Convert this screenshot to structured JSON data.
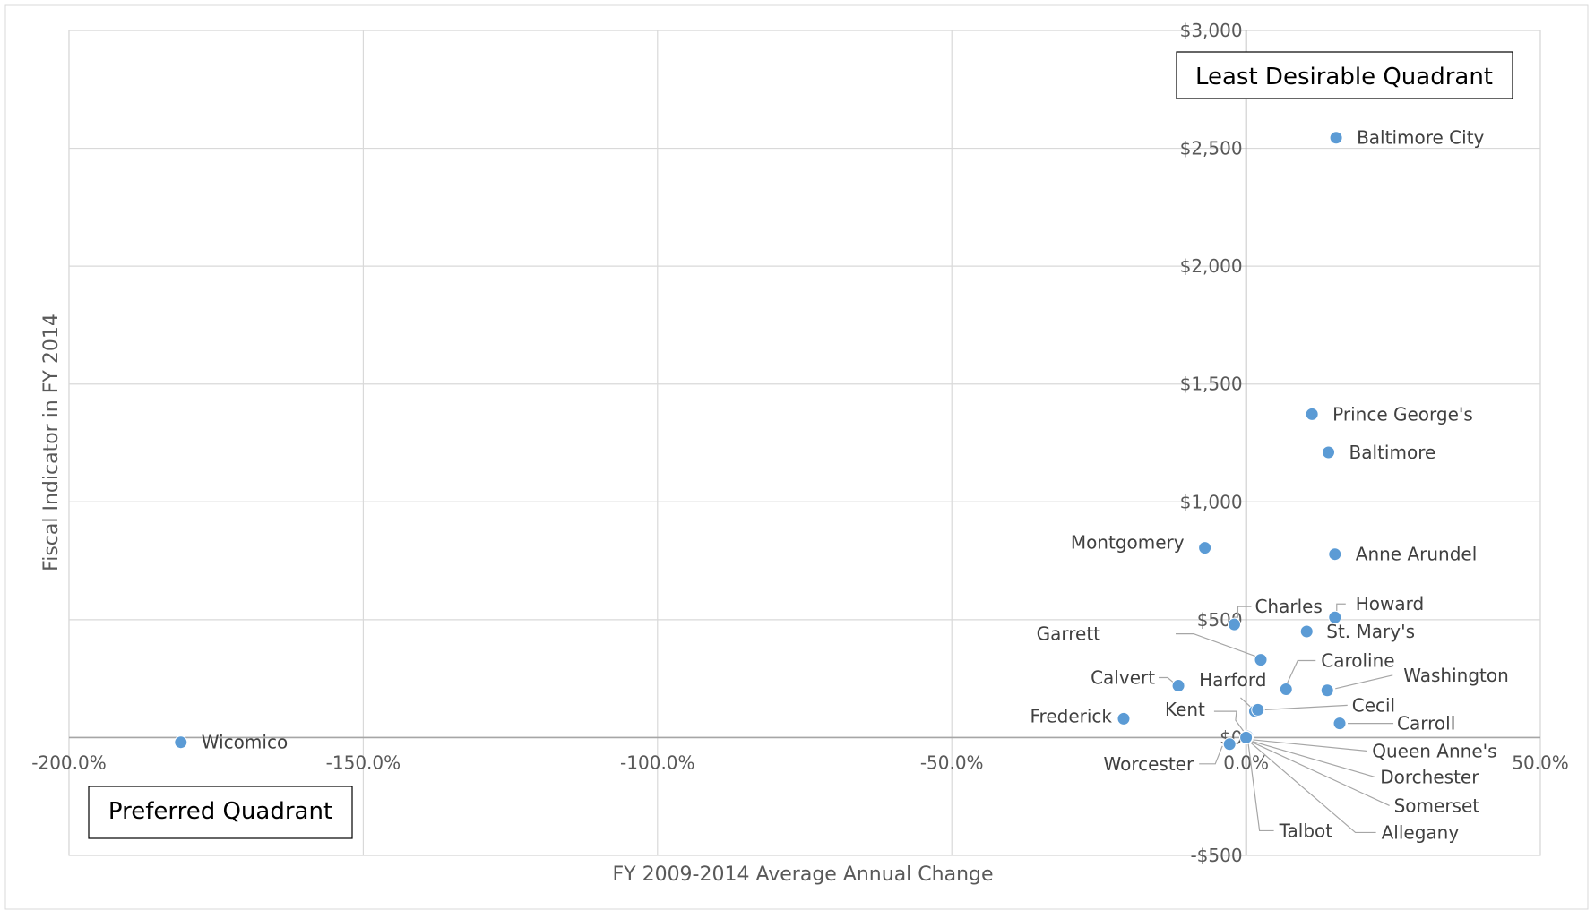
{
  "chart_data": {
    "type": "scatter",
    "xlabel": "FY 2009-2014 Average Annual Change",
    "ylabel": "Fiscal Indicator in FY 2014",
    "xlim": [
      -2.0,
      0.5
    ],
    "ylim": [
      -500,
      3000
    ],
    "x_ticks": [
      -2.0,
      -1.5,
      -1.0,
      -0.5,
      0.0,
      0.5
    ],
    "x_tick_labels": [
      "-200.0%",
      "-150.0%",
      "-100.0%",
      "-50.0%",
      "0.0%",
      "50.0%"
    ],
    "y_ticks": [
      -500,
      0,
      500,
      1000,
      1500,
      2000,
      2500,
      3000
    ],
    "y_tick_labels": [
      "-$500",
      "$0",
      "$500",
      "$1,000",
      "$1,500",
      "$2,000",
      "$2,500",
      "$3,000"
    ],
    "grid": true,
    "marker_color": "#5B9BD5",
    "annotations": [
      "Least Desirable Quadrant",
      "Preferred Quadrant"
    ],
    "points": [
      {
        "label": "Baltimore City",
        "x": 0.153,
        "y": 2545
      },
      {
        "label": "Prince George's",
        "x": 0.112,
        "y": 1372
      },
      {
        "label": "Baltimore",
        "x": 0.14,
        "y": 1210
      },
      {
        "label": "Montgomery",
        "x": -0.07,
        "y": 805
      },
      {
        "label": "Anne Arundel",
        "x": 0.151,
        "y": 778
      },
      {
        "label": "Charles",
        "x": -0.02,
        "y": 480
      },
      {
        "label": "Howard",
        "x": 0.151,
        "y": 510
      },
      {
        "label": "St. Mary's",
        "x": 0.103,
        "y": 450
      },
      {
        "label": "Garrett",
        "x": 0.025,
        "y": 330
      },
      {
        "label": "Caroline",
        "x": 0.068,
        "y": 205
      },
      {
        "label": "Washington",
        "x": 0.138,
        "y": 200
      },
      {
        "label": "Calvert",
        "x": -0.115,
        "y": 220
      },
      {
        "label": "Harford",
        "x": 0.015,
        "y": 112
      },
      {
        "label": "Cecil",
        "x": 0.02,
        "y": 118
      },
      {
        "label": "Frederick",
        "x": -0.208,
        "y": 80
      },
      {
        "label": "Carroll",
        "x": 0.159,
        "y": 60
      },
      {
        "label": "Kent",
        "x": 0.002,
        "y": 5
      },
      {
        "label": "Wicomico",
        "x": -1.81,
        "y": -20
      },
      {
        "label": "Worcester",
        "x": -0.028,
        "y": -28
      },
      {
        "label": "Queen Anne's",
        "x": 0.001,
        "y": 0
      },
      {
        "label": "Dorchester",
        "x": 0.001,
        "y": 0
      },
      {
        "label": "Somerset",
        "x": 0.0,
        "y": 0
      },
      {
        "label": "Allegany",
        "x": 0.0,
        "y": 0
      },
      {
        "label": "Talbot",
        "x": 0.0,
        "y": 0
      }
    ]
  }
}
